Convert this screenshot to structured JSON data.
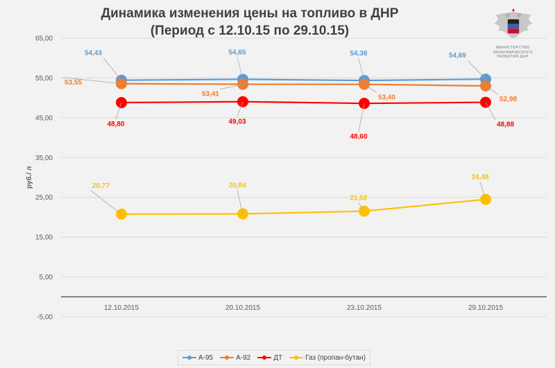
{
  "title": {
    "line1": "Динамика изменения цены на топливо в ДНР",
    "line2": "(Период с 12.10.15 по 29.10.15)"
  },
  "logo": {
    "ministry_text": [
      "МИНИСТЕРСТВО",
      "ЭКОНОМИЧЕСКОГО",
      "РАЗВИТИЯ ДНР"
    ]
  },
  "chart_data": {
    "type": "line",
    "title": "Динамика изменения цены на топливо в ДНР",
    "subtitle": "(Период с 12.10.15 по 29.10.15)",
    "ylabel": "руб./ л",
    "xlabel": "",
    "categories": [
      "12.10.2015",
      "20.10.2015",
      "23.10.2015",
      "29.10.2015"
    ],
    "ylim": [
      -5,
      65
    ],
    "yticks": [
      "65,00",
      "55,00",
      "45,00",
      "35,00",
      "25,00",
      "15,00",
      "5,00",
      "-5,00"
    ],
    "ytick_values": [
      65,
      55,
      45,
      35,
      25,
      15,
      5,
      -5
    ],
    "grid": true,
    "legend_position": "bottom",
    "series": [
      {
        "name": "А-95",
        "color": "#5b9bd5",
        "values": [
          54.43,
          54.65,
          54.36,
          54.69
        ],
        "labels": [
          "54,43",
          "54,65",
          "54,36",
          "54,69"
        ]
      },
      {
        "name": "А-92",
        "color": "#ed7d31",
        "values": [
          53.55,
          53.41,
          53.4,
          52.98
        ],
        "labels": [
          "53,55",
          "53,41",
          "53,40",
          "52,98"
        ]
      },
      {
        "name": "ДТ",
        "color": "#ff0000",
        "values": [
          48.8,
          49.03,
          48.6,
          48.88
        ],
        "labels": [
          "48,80",
          "49,03",
          "48,60",
          "48,88"
        ]
      },
      {
        "name": "Газ (пропан-бутан)",
        "color": "#ffc000",
        "values": [
          20.77,
          20.84,
          21.52,
          24.48
        ],
        "labels": [
          "20,77",
          "20,84",
          "21,52",
          "24,48"
        ]
      }
    ]
  }
}
